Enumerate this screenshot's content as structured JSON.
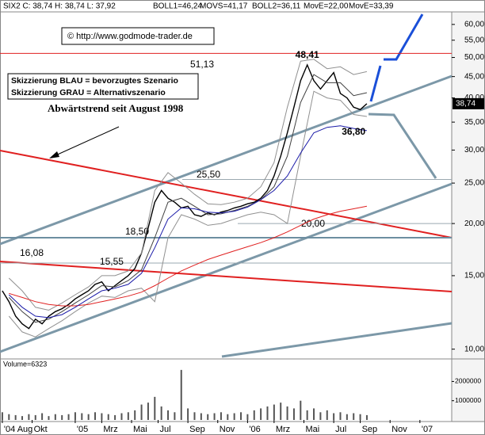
{
  "chart_data": {
    "type": "line",
    "log_y": true,
    "grid": false,
    "x": [
      0,
      2,
      4,
      6,
      8,
      10,
      12,
      14,
      16,
      18,
      20,
      22,
      24,
      26,
      28,
      30,
      32,
      34,
      36,
      38,
      40,
      42,
      44,
      46,
      48,
      50,
      52,
      54,
      56,
      58,
      60,
      62,
      64,
      66,
      68,
      70,
      72,
      74,
      76,
      78,
      80,
      82,
      84,
      86,
      88,
      90,
      92,
      94,
      96,
      98,
      100,
      102,
      104,
      106,
      108,
      110
    ],
    "xlim": [
      -0.7,
      135.6
    ],
    "xticks": [
      {
        "value": 0,
        "label": "'04 Aug"
      },
      {
        "value": 9,
        "label": "Okt"
      },
      {
        "value": 22,
        "label": "'05"
      },
      {
        "value": 30,
        "label": "Mrz"
      },
      {
        "value": 39,
        "label": "Mai"
      },
      {
        "value": 47,
        "label": "Jul"
      },
      {
        "value": 56,
        "label": "Sep"
      },
      {
        "value": 65,
        "label": "Nov"
      },
      {
        "value": 74,
        "label": "'06"
      },
      {
        "value": 82,
        "label": "Mrz"
      },
      {
        "value": 91,
        "label": "Mai"
      },
      {
        "value": 100,
        "label": "Jul"
      },
      {
        "value": 108,
        "label": "Sep"
      },
      {
        "value": 117,
        "label": "Nov"
      },
      {
        "value": 126,
        "label": "'07"
      }
    ],
    "ylim": [
      9.6,
      64.3
    ],
    "yticks": [
      {
        "value": 10,
        "label": "10,00"
      },
      {
        "value": 15,
        "label": "15,00"
      },
      {
        "value": 20,
        "label": "20,00"
      },
      {
        "value": 25,
        "label": "25,00"
      },
      {
        "value": 30,
        "label": "30,00"
      },
      {
        "value": 35,
        "label": "35,00"
      },
      {
        "value": 40,
        "label": "40,00"
      },
      {
        "value": 45,
        "label": "45,00"
      },
      {
        "value": 50,
        "label": "50,00"
      },
      {
        "value": 55,
        "label": "55,00"
      },
      {
        "value": 60,
        "label": "60,00"
      }
    ],
    "series": [
      {
        "name": "SIX2 C: 38,74 H: 38,74 L: 37,92",
        "color": "#000000",
        "legend_color": "#000000",
        "values": [
          13.8,
          13.0,
          12.0,
          11.5,
          11.2,
          11.8,
          11.5,
          12.0,
          12.3,
          12.5,
          12.8,
          13.2,
          13.5,
          13.8,
          14.3,
          14.5,
          13.8,
          14.2,
          14.6,
          15.0,
          15.6,
          17.0,
          19.5,
          22.5,
          24.0,
          23.0,
          22.5,
          21.8,
          22.0,
          21.0,
          20.8,
          21.2,
          21.0,
          21.3,
          21.5,
          21.8,
          22.0,
          22.3,
          22.5,
          23.0,
          24.0,
          26.0,
          29.0,
          33.0,
          38.0,
          44.0,
          48.0,
          44.0,
          42.0,
          44.0,
          46.0,
          41.0,
          40.0,
          38.0,
          37.5,
          38.74
        ]
      },
      {
        "name": "BOLL1=46,24",
        "color": "#909090",
        "legend_color": "#000000",
        "x": [
          2,
          6,
          10,
          14,
          18,
          22,
          26,
          30,
          34,
          38,
          42,
          46,
          50,
          54,
          58,
          62,
          66,
          70,
          74,
          78,
          82,
          86,
          90,
          94,
          98,
          102,
          106,
          110
        ],
        "values": [
          14.8,
          13.8,
          12.6,
          12.4,
          12.9,
          13.5,
          14.1,
          15.0,
          15.0,
          15.4,
          17.0,
          24.0,
          26.5,
          25.0,
          23.5,
          22.3,
          22.2,
          22.5,
          23.0,
          24.5,
          28.0,
          38.0,
          49.0,
          49.5,
          47.0,
          47.5,
          45.5,
          46.24
        ]
      },
      {
        "name": "MOVS=41,17",
        "color": "#404040",
        "legend_color": "#000000",
        "x": [
          2,
          6,
          10,
          14,
          18,
          22,
          26,
          30,
          34,
          38,
          42,
          46,
          50,
          54,
          58,
          62,
          66,
          70,
          74,
          78,
          82,
          86,
          90,
          94,
          98,
          102,
          106,
          110
        ],
        "values": [
          13.3,
          12.3,
          11.6,
          11.8,
          12.3,
          12.9,
          13.5,
          14.2,
          14.1,
          14.6,
          15.5,
          18.5,
          22.5,
          23.0,
          22.0,
          21.0,
          21.1,
          21.5,
          22.0,
          22.8,
          24.5,
          29.0,
          39.0,
          45.5,
          43.5,
          43.5,
          40.5,
          41.17
        ]
      },
      {
        "name": "BOLL2=36,11",
        "color": "#909090",
        "legend_color": "#000000",
        "x": [
          2,
          6,
          10,
          14,
          18,
          22,
          26,
          30,
          34,
          38,
          42,
          46,
          50,
          54,
          58,
          62,
          66,
          70,
          74,
          78,
          82,
          86,
          90,
          94,
          98,
          102,
          106,
          110
        ],
        "values": [
          12.0,
          11.0,
          10.7,
          11.2,
          11.7,
          12.3,
          12.9,
          13.4,
          13.3,
          13.8,
          14.0,
          13.0,
          18.5,
          21.0,
          20.5,
          19.8,
          20.0,
          20.5,
          21.0,
          21.3,
          21.0,
          20.0,
          29.0,
          41.5,
          40.0,
          39.5,
          36.5,
          36.11
        ]
      },
      {
        "name": "MovE=22,00",
        "color": "#e02020",
        "legend_color": "#e02020",
        "x": [
          2,
          6,
          10,
          14,
          18,
          22,
          26,
          30,
          34,
          38,
          42,
          46,
          50,
          54,
          58,
          62,
          66,
          70,
          74,
          78,
          82,
          86,
          90,
          94,
          98,
          102,
          106,
          110
        ],
        "values": [
          13.6,
          13.3,
          13.0,
          12.8,
          12.7,
          12.7,
          12.8,
          13.0,
          13.2,
          13.4,
          13.7,
          14.2,
          14.8,
          15.4,
          15.9,
          16.4,
          16.8,
          17.2,
          17.6,
          18.0,
          18.5,
          19.1,
          19.8,
          20.5,
          21.0,
          21.4,
          21.7,
          22.0
        ]
      },
      {
        "name": "MovE=33,39",
        "color": "#1a1aa8",
        "legend_color": "#1a1aa8",
        "x": [
          2,
          6,
          10,
          14,
          18,
          22,
          26,
          30,
          34,
          38,
          42,
          46,
          50,
          54,
          58,
          62,
          66,
          70,
          74,
          78,
          82,
          86,
          90,
          94,
          98,
          102,
          106,
          110
        ],
        "values": [
          13.5,
          12.6,
          12.0,
          11.9,
          12.1,
          12.6,
          13.2,
          13.8,
          14.0,
          14.3,
          15.2,
          17.5,
          20.5,
          21.8,
          21.7,
          21.3,
          21.2,
          21.4,
          21.9,
          22.8,
          24.0,
          26.0,
          29.5,
          33.0,
          34.0,
          34.3,
          33.8,
          33.39
        ]
      }
    ],
    "levels": [
      {
        "value": 51.13,
        "label": "51,13",
        "color": "#e02020"
      },
      {
        "value": 25.5,
        "label": "25,50",
        "color": "#9aa8b0"
      },
      {
        "value": 20.0,
        "label": "20,00",
        "color": "#9aa8b0"
      },
      {
        "value": 18.5,
        "label": "18,50",
        "color": "#6d8ea0"
      },
      {
        "value": 16.08,
        "label": "16,08",
        "color": "#9aa8b0"
      }
    ],
    "annotations": [
      {
        "value": 48.41,
        "label": "48,41"
      },
      {
        "value": 36.8,
        "label": "36,80"
      },
      {
        "value": 15.55,
        "label": "15,55"
      }
    ],
    "last_price": {
      "value": 38.74,
      "label": "38,74"
    },
    "copyright": "© http://www.godmode-trader.de",
    "notes": [
      "Skizzierung BLAU = bevorzugtes Szenario",
      "Skizzierung GRAU = Alternativszenario"
    ],
    "trend_label": "Abwärtstrend seit August 1998",
    "volume": {
      "label": "Volume=6323",
      "color": "#555555",
      "ylim": [
        0,
        2800000
      ],
      "yticks": [
        1000000,
        2000000
      ],
      "values": [
        400000,
        300000,
        250000,
        200000,
        300000,
        250000,
        350000,
        200000,
        300000,
        250000,
        300000,
        400000,
        350000,
        300000,
        400000,
        350000,
        300000,
        250000,
        350000,
        400000,
        500000,
        800000,
        900000,
        1200000,
        700000,
        500000,
        400000,
        2600000,
        600000,
        400000,
        350000,
        300000,
        350000,
        400000,
        300000,
        350000,
        400000,
        300000,
        500000,
        600000,
        700000,
        800000,
        900000,
        700000,
        600000,
        1000000,
        500000,
        600000,
        400000,
        500000,
        350000,
        400000,
        300000,
        350000,
        300000,
        250000
      ]
    }
  }
}
